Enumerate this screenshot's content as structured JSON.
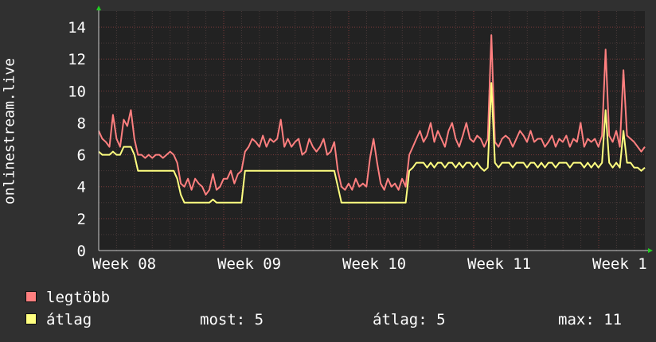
{
  "chart_data": {
    "type": "line",
    "ylabel": "onlinestream.live",
    "ylim": [
      0,
      15
    ],
    "yticks": [
      0,
      2,
      4,
      6,
      8,
      10,
      12,
      14
    ],
    "xticks": [
      "Week 08",
      "Week 09",
      "Week 10",
      "Week 11",
      "Week 1"
    ],
    "grid": true,
    "legend_position": "bottom-left",
    "series": [
      {
        "name": "legtöbb",
        "color": "#ff7f7f",
        "values": [
          7.5,
          7,
          6.8,
          6.5,
          8.5,
          7,
          6.5,
          8.2,
          7.8,
          8.8,
          7,
          6,
          6,
          5.8,
          6,
          5.8,
          6,
          6,
          5.8,
          6,
          6.2,
          6,
          5.5,
          4.2,
          4,
          4.5,
          3.8,
          4.5,
          4.2,
          4,
          3.5,
          3.8,
          4.8,
          3.8,
          4,
          4.5,
          4.5,
          5,
          4.2,
          4.8,
          5,
          6.2,
          6.5,
          7,
          6.8,
          6.5,
          7.2,
          6.5,
          7,
          6.8,
          7,
          8.2,
          6.5,
          7,
          6.5,
          6.8,
          7,
          6,
          6.2,
          7,
          6.5,
          6.2,
          6.5,
          7,
          6,
          6.2,
          6.8,
          5,
          4,
          3.8,
          4.2,
          3.8,
          4.5,
          4,
          4.2,
          4,
          5.8,
          7,
          5.5,
          4.2,
          3.8,
          4.5,
          4,
          4.2,
          3.8,
          4.5,
          4,
          6,
          6.5,
          7,
          7.5,
          6.8,
          7.2,
          8,
          6.8,
          7.5,
          7,
          6.5,
          7.5,
          8,
          7,
          6.5,
          7.2,
          8,
          7,
          6.8,
          7.2,
          7,
          6.5,
          7,
          13.5,
          6.8,
          6.5,
          7,
          7.2,
          7,
          6.5,
          7,
          7.5,
          7.2,
          6.8,
          7.5,
          6.8,
          7,
          7,
          6.5,
          6.8,
          7.2,
          6.5,
          7,
          6.8,
          7.2,
          6.5,
          7,
          6.8,
          8,
          6.5,
          7,
          6.8,
          7,
          6.5,
          7.2,
          12.6,
          7.2,
          6.8,
          7.5,
          6.5,
          11.3,
          7.2,
          7,
          6.8,
          6.5,
          6.2,
          6.5
        ]
      },
      {
        "name": "átlag",
        "color": "#ffff80",
        "values": [
          6.2,
          6,
          6,
          6,
          6.2,
          6,
          6,
          6.5,
          6.5,
          6.5,
          6,
          5,
          5,
          5,
          5,
          5,
          5,
          5,
          5,
          5,
          5,
          5,
          4.5,
          3.5,
          3,
          3,
          3,
          3,
          3,
          3,
          3,
          3,
          3.2,
          3,
          3,
          3,
          3,
          3,
          3,
          3,
          3,
          5,
          5,
          5,
          5,
          5,
          5,
          5,
          5,
          5,
          5,
          5,
          5,
          5,
          5,
          5,
          5,
          5,
          5,
          5,
          5,
          5,
          5,
          5,
          5,
          5,
          5,
          4,
          3,
          3,
          3,
          3,
          3,
          3,
          3,
          3,
          3,
          3,
          3,
          3,
          3,
          3,
          3,
          3,
          3,
          3,
          3,
          5,
          5.2,
          5.5,
          5.5,
          5.5,
          5.2,
          5.5,
          5.2,
          5.5,
          5.5,
          5.2,
          5.5,
          5.5,
          5.2,
          5.5,
          5.2,
          5.5,
          5.5,
          5.2,
          5.5,
          5.2,
          5,
          5.2,
          10.5,
          5.5,
          5.2,
          5.5,
          5.5,
          5.5,
          5.2,
          5.5,
          5.5,
          5.5,
          5.2,
          5.5,
          5.5,
          5.2,
          5.5,
          5.2,
          5.5,
          5.5,
          5.2,
          5.5,
          5.5,
          5.5,
          5.2,
          5.5,
          5.5,
          5.5,
          5.2,
          5.5,
          5.2,
          5.5,
          5.2,
          5.5,
          8.8,
          5.5,
          5.2,
          5.5,
          5.2,
          7.5,
          5.5,
          5.5,
          5.2,
          5.2,
          5,
          5.2
        ]
      }
    ]
  },
  "stats": {
    "most": "most: 5",
    "atlag": "átlag: 5",
    "max": "max: 11"
  }
}
